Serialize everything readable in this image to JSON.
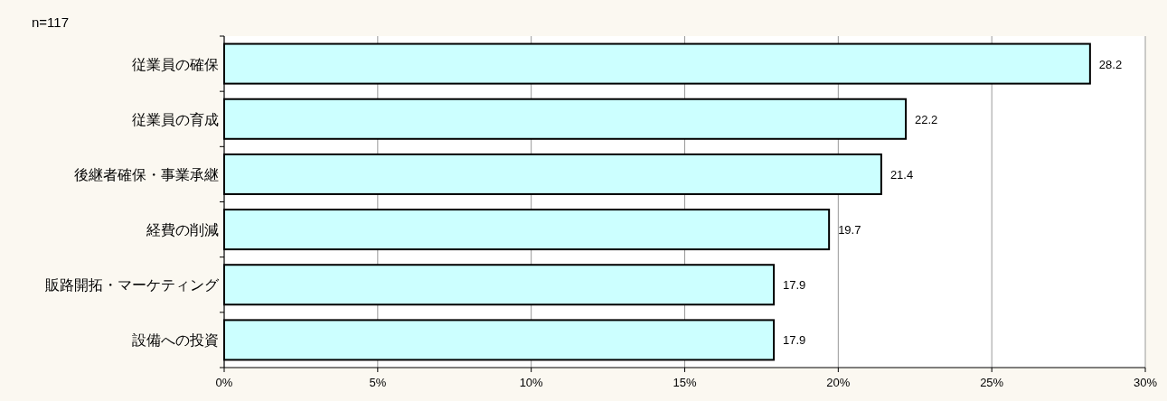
{
  "chart_data": {
    "type": "bar",
    "orientation": "horizontal",
    "categories": [
      "従業員の確保",
      "従業員の育成",
      "後継者確保・事業承継",
      "経費の削減",
      "販路開拓・マーケティング",
      "設備への投資"
    ],
    "values": [
      28.2,
      22.2,
      21.4,
      19.7,
      17.9,
      17.9
    ],
    "color": "#ccffff",
    "xlim": [
      0,
      30
    ],
    "xticks": [
      {
        "value": 0,
        "label": "0%"
      },
      {
        "value": 5,
        "label": "5%"
      },
      {
        "value": 10,
        "label": "10%"
      },
      {
        "value": 15,
        "label": "15%"
      },
      {
        "value": 20,
        "label": "20%"
      },
      {
        "value": 25,
        "label": "25%"
      },
      {
        "value": 30,
        "label": "30%"
      }
    ],
    "grid": "x",
    "data_labels": true,
    "annotations": [
      "n=117"
    ]
  }
}
